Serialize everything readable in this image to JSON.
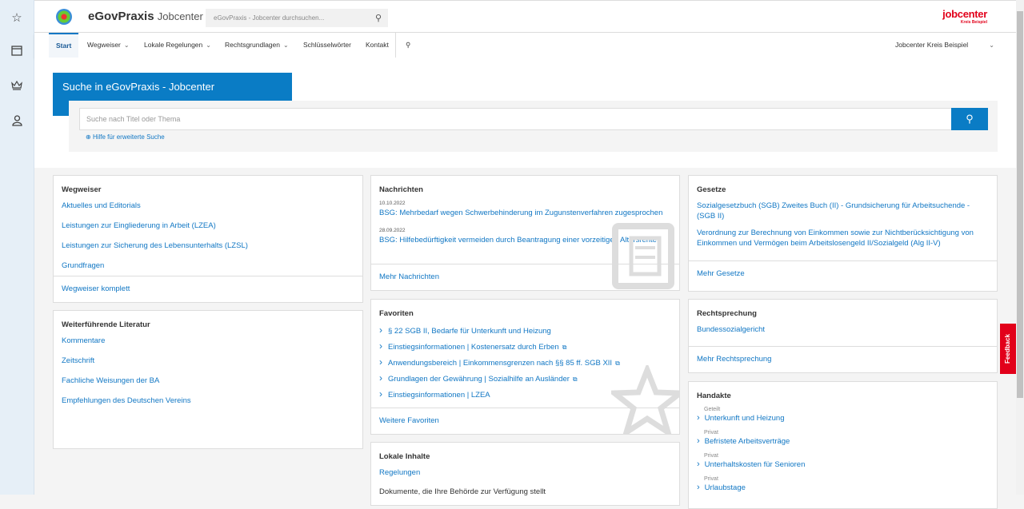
{
  "sidebar": {
    "icons": [
      "star-icon",
      "folder-icon",
      "crown-icon",
      "user-icon"
    ]
  },
  "header": {
    "brand": "eGovPraxis",
    "brand_sub": "Jobcenter",
    "search_placeholder": "eGovPraxis - Jobcenter durchsuchen...",
    "jobcenter_logo": "jobcenter",
    "jobcenter_logo_sub": "Kreis Beispiel"
  },
  "nav": {
    "items": [
      "Start",
      "Wegweiser",
      "Lokale Regelungen",
      "Rechtsgrundlagen",
      "Schlüsselwörter",
      "Kontakt"
    ],
    "account": "Jobcenter Kreis Beispiel"
  },
  "hero": {
    "title": "Suche in eGovPraxis - Jobcenter",
    "placeholder": "Suche nach Titel oder Thema",
    "help": "Hilfe für erweiterte Suche"
  },
  "wegweiser": {
    "title": "Wegweiser",
    "links": [
      "Aktuelles und Editorials",
      "Leistungen zur Eingliederung in Arbeit (LZEA)",
      "Leistungen zur Sicherung des Lebensunterhalts (LZSL)",
      "Grundfragen"
    ],
    "footer": "Wegweiser komplett"
  },
  "literatur": {
    "title": "Weiterführende Literatur",
    "links": [
      "Kommentare",
      "Zeitschrift",
      "Fachliche Weisungen der BA",
      "Empfehlungen des Deutschen Vereins"
    ]
  },
  "nachrichten": {
    "title": "Nachrichten",
    "items": [
      {
        "date": "10.10.2022",
        "text": "BSG: Mehrbedarf wegen Schwerbehinderung im Zugunstenverfahren zugesprochen"
      },
      {
        "date": "28.09.2022",
        "text": "BSG: Hilfebedürftigkeit vermeiden durch Beantragung einer vorzeitigen Altersrente"
      }
    ],
    "footer": "Mehr Nachrichten"
  },
  "favoriten": {
    "title": "Favoriten",
    "items": [
      "§ 22 SGB II, Bedarfe für Unterkunft und Heizung",
      "Einstiegsinformationen | Kostenersatz durch Erben",
      "Anwendungsbereich | Einkommensgrenzen nach §§ 85 ff. SGB XII",
      "Grundlagen der Gewährung | Sozialhilfe an Ausländer",
      "Einstiegsinformationen | LZEA"
    ],
    "footer": "Weitere Favoriten"
  },
  "lokale": {
    "title": "Lokale Inhalte",
    "link": "Regelungen",
    "text": "Dokumente, die Ihre Behörde zur Verfügung stellt"
  },
  "gesetze": {
    "title": "Gesetze",
    "links": [
      "Sozialgesetzbuch (SGB) Zweites Buch (II) - Grundsicherung für Arbeitsuchende - (SGB II)",
      "Verordnung zur Berechnung von Einkommen sowie zur Nichtberücksichtigung von Einkommen und Vermögen beim Arbeitslosengeld II/Sozialgeld (Alg II-V)"
    ],
    "footer": "Mehr Gesetze"
  },
  "rechtsprechung": {
    "title": "Rechtsprechung",
    "links": [
      "Bundessozialgericht"
    ],
    "footer": "Mehr Rechtsprechung"
  },
  "handakte": {
    "title": "Handakte",
    "items": [
      {
        "cat": "Geteilt",
        "text": "Unterkunft und Heizung"
      },
      {
        "cat": "Privat",
        "text": "Befristete Arbeitsverträge"
      },
      {
        "cat": "Privat",
        "text": "Unterhaltskosten für Senioren"
      },
      {
        "cat": "Privat",
        "text": "Urlaubstage"
      }
    ]
  },
  "feedback": "Feedback",
  "colors": {
    "accent": "#0a7cc5",
    "link": "#1177c4",
    "brand_red": "#e2001a"
  }
}
